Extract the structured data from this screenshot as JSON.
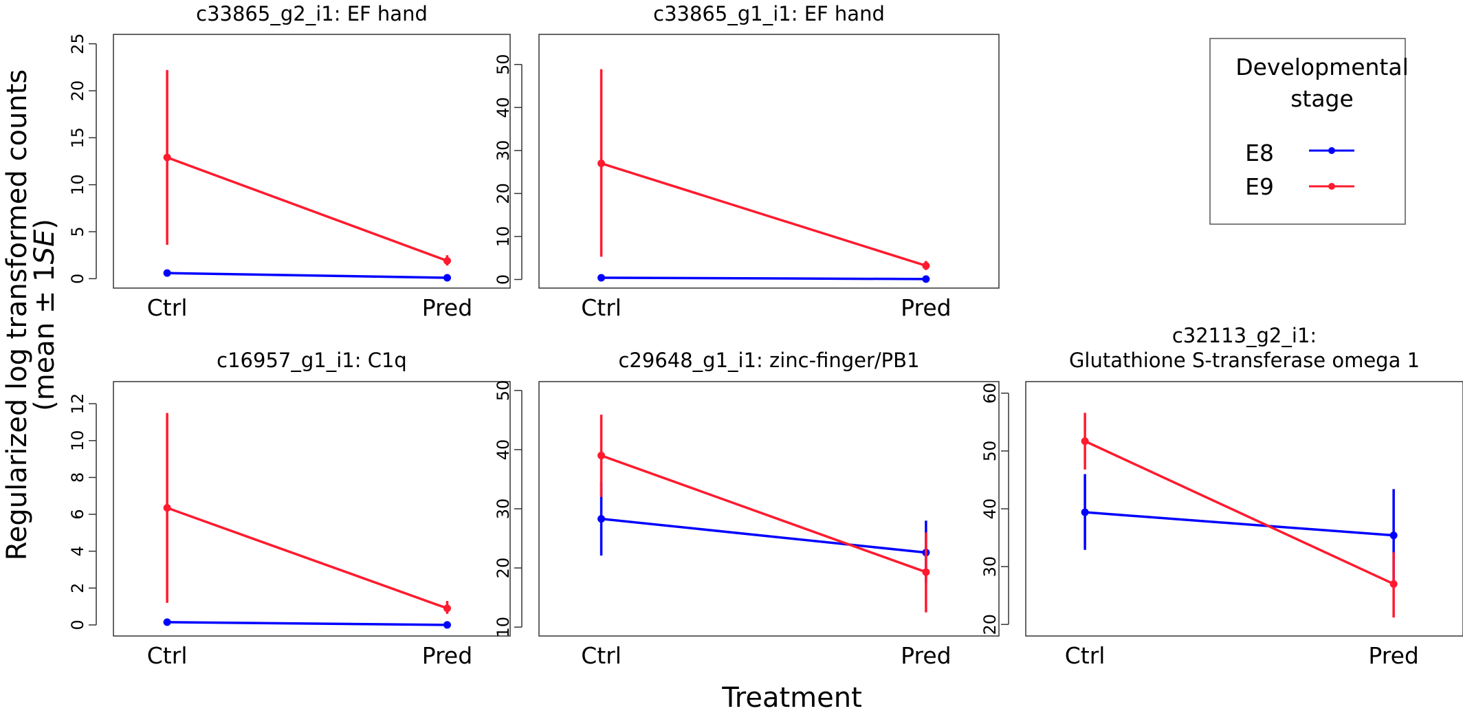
{
  "figure": {
    "ylabel_line1": "Regularized log transformed counts",
    "ylabel_line2_pre": "(mean ± 1",
    "ylabel_line2_se": "SE",
    "ylabel_line2_post": ")",
    "xlabel": "Treatment"
  },
  "legend": {
    "title_line1": "Developmental",
    "title_line2": "stage",
    "entries": [
      {
        "label": "E8",
        "color": "#0000ff"
      },
      {
        "label": "E9",
        "color": "#ff1a2e"
      }
    ]
  },
  "chart_data": [
    {
      "type": "line",
      "title_lines": [
        "c33865_g2_i1: EF hand"
      ],
      "categories": [
        "Ctrl",
        "Pred"
      ],
      "ylim": [
        -1,
        26
      ],
      "yticks": [
        0,
        5,
        10,
        15,
        20,
        25
      ],
      "series": [
        {
          "name": "E8",
          "color": "#0000ff",
          "values": [
            0.6,
            0.1
          ],
          "err_low": [
            0.4,
            0.0
          ],
          "err_high": [
            0.8,
            0.2
          ]
        },
        {
          "name": "E9",
          "color": "#ff1a2e",
          "values": [
            12.9,
            1.9
          ],
          "err_low": [
            3.6,
            1.4
          ],
          "err_high": [
            22.2,
            2.5
          ]
        }
      ]
    },
    {
      "type": "line",
      "title_lines": [
        "c33865_g1_i1: EF hand"
      ],
      "categories": [
        "Ctrl",
        "Pred"
      ],
      "ylim": [
        -2,
        57
      ],
      "yticks": [
        0,
        10,
        20,
        30,
        40,
        50
      ],
      "series": [
        {
          "name": "E8",
          "color": "#0000ff",
          "values": [
            0.4,
            0.1
          ],
          "err_low": [
            0.2,
            0.0
          ],
          "err_high": [
            0.6,
            0.2
          ]
        },
        {
          "name": "E9",
          "color": "#ff1a2e",
          "values": [
            27.0,
            3.2
          ],
          "err_low": [
            5.3,
            2.2
          ],
          "err_high": [
            48.9,
            4.3
          ]
        }
      ]
    },
    {
      "type": "line",
      "title_lines": [
        "c16957_g1_i1: C1q"
      ],
      "categories": [
        "Ctrl",
        "Pred"
      ],
      "ylim": [
        -0.6,
        13.2
      ],
      "yticks": [
        0,
        2,
        4,
        6,
        8,
        10,
        12
      ],
      "series": [
        {
          "name": "E8",
          "color": "#0000ff",
          "values": [
            0.15,
            0.0
          ],
          "err_low": [
            0.1,
            -0.05
          ],
          "err_high": [
            0.2,
            0.05
          ]
        },
        {
          "name": "E9",
          "color": "#ff1a2e",
          "values": [
            6.35,
            0.9
          ],
          "err_low": [
            1.2,
            0.6
          ],
          "err_high": [
            11.5,
            1.3
          ]
        }
      ]
    },
    {
      "type": "line",
      "title_lines": [
        "c29648_g1_i1: zinc-finger/PB1"
      ],
      "categories": [
        "Ctrl",
        "Pred"
      ],
      "ylim": [
        8.5,
        51.5
      ],
      "yticks": [
        10,
        20,
        30,
        40,
        50
      ],
      "series": [
        {
          "name": "E8",
          "color": "#0000ff",
          "values": [
            28.3,
            22.6
          ],
          "err_low": [
            22.1,
            17.4
          ],
          "err_high": [
            34.5,
            28.0
          ]
        },
        {
          "name": "E9",
          "color": "#ff1a2e",
          "values": [
            39.0,
            19.3
          ],
          "err_low": [
            32.0,
            12.5
          ],
          "err_high": [
            45.9,
            26.0
          ]
        }
      ]
    },
    {
      "type": "line",
      "title_lines": [
        "c32113_g2_i1:",
        "Glutathione S-transferase omega 1"
      ],
      "categories": [
        "Ctrl",
        "Pred"
      ],
      "ylim": [
        18,
        62
      ],
      "yticks": [
        20,
        30,
        40,
        50,
        60
      ],
      "series": [
        {
          "name": "E8",
          "color": "#0000ff",
          "values": [
            39.4,
            35.4
          ],
          "err_low": [
            32.9,
            27.6
          ],
          "err_high": [
            46.0,
            43.4
          ]
        },
        {
          "name": "E9",
          "color": "#ff1a2e",
          "values": [
            51.7,
            27.0
          ],
          "err_low": [
            46.8,
            21.2
          ],
          "err_high": [
            56.6,
            32.5
          ]
        }
      ]
    }
  ]
}
